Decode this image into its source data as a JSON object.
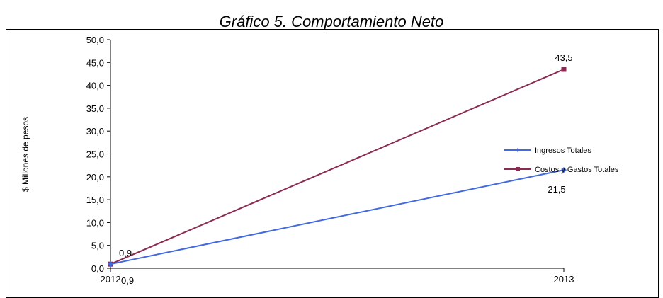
{
  "chart_data": {
    "type": "line",
    "title": "Gráfico 5. Comportamiento Neto",
    "xlabel": "",
    "ylabel": "$ Millones de pesos",
    "categories": [
      "2012",
      "2013"
    ],
    "ylim": [
      0,
      50
    ],
    "y_ticks": [
      "0,0",
      "5,0",
      "10,0",
      "15,0",
      "20,0",
      "25,0",
      "30,0",
      "35,0",
      "40,0",
      "45,0",
      "50,0"
    ],
    "grid": false,
    "legend_position": "right",
    "series": [
      {
        "name": "Ingresos Totales",
        "values": [
          0.9,
          21.5
        ],
        "data_labels": [
          "0,9",
          "21,5"
        ],
        "color": "#4169e1",
        "marker": "diamond"
      },
      {
        "name": "Costos y Gastos Totales",
        "values": [
          0.9,
          43.5
        ],
        "data_labels": [
          "0,9",
          "43,5"
        ],
        "color": "#8b2a52",
        "marker": "square"
      }
    ]
  }
}
